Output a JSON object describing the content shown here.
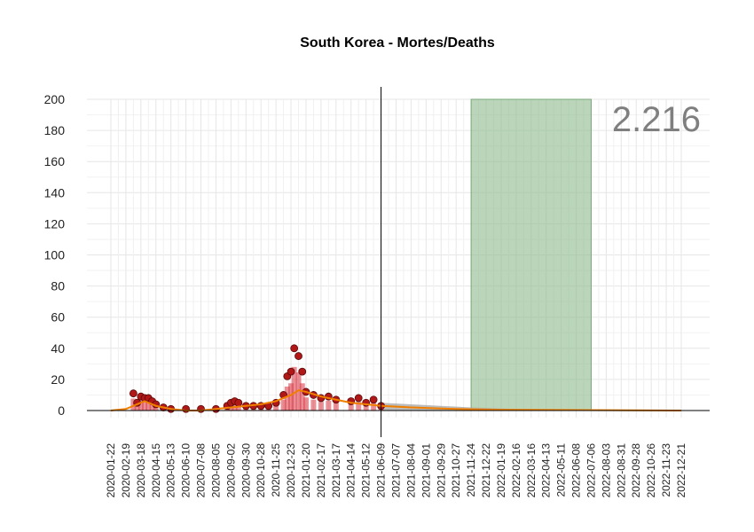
{
  "chart_data": {
    "type": "bar",
    "title": "South Korea - Mortes/Deaths",
    "total_label": "2.216",
    "ylim": [
      0,
      200
    ],
    "y_ticks": [
      0,
      20,
      40,
      60,
      80,
      100,
      120,
      140,
      160,
      180,
      200
    ],
    "x_ticks": [
      "2020-01-22",
      "2020-02-19",
      "2020-03-18",
      "2020-04-15",
      "2020-05-13",
      "2020-06-10",
      "2020-07-08",
      "2020-08-05",
      "2020-09-02",
      "2020-09-30",
      "2020-10-28",
      "2020-11-25",
      "2020-12-23",
      "2021-01-20",
      "2021-02-17",
      "2021-03-17",
      "2021-04-14",
      "2021-05-12",
      "2021-06-09",
      "2021-07-07",
      "2021-08-04",
      "2021-09-01",
      "2021-09-29",
      "2021-10-27",
      "2021-11-24",
      "2021-12-22",
      "2022-01-19",
      "2022-02-16",
      "2022-03-16",
      "2022-04-13",
      "2022-05-11",
      "2022-06-08",
      "2022-07-06",
      "2022-08-03",
      "2022-08-31",
      "2022-09-28",
      "2022-10-26",
      "2022-11-23",
      "2022-12-21"
    ],
    "x_range": [
      "2020-01-22",
      "2022-12-21"
    ],
    "grid": true,
    "forecast_start": "2021-06-09",
    "highlight_range": [
      "2021-11-24",
      "2022-07-06"
    ],
    "observed_points": [
      {
        "x": "2020-03-04",
        "y": 11
      },
      {
        "x": "2020-03-11",
        "y": 5
      },
      {
        "x": "2020-03-18",
        "y": 9
      },
      {
        "x": "2020-03-25",
        "y": 8
      },
      {
        "x": "2020-04-01",
        "y": 8
      },
      {
        "x": "2020-04-08",
        "y": 6
      },
      {
        "x": "2020-04-15",
        "y": 4
      },
      {
        "x": "2020-04-29",
        "y": 2
      },
      {
        "x": "2020-05-13",
        "y": 1
      },
      {
        "x": "2020-06-10",
        "y": 1
      },
      {
        "x": "2020-07-08",
        "y": 1
      },
      {
        "x": "2020-08-05",
        "y": 1
      },
      {
        "x": "2020-08-26",
        "y": 3
      },
      {
        "x": "2020-09-02",
        "y": 5
      },
      {
        "x": "2020-09-09",
        "y": 6
      },
      {
        "x": "2020-09-16",
        "y": 5
      },
      {
        "x": "2020-09-30",
        "y": 3
      },
      {
        "x": "2020-10-14",
        "y": 3
      },
      {
        "x": "2020-10-28",
        "y": 3
      },
      {
        "x": "2020-11-11",
        "y": 3
      },
      {
        "x": "2020-11-25",
        "y": 5
      },
      {
        "x": "2020-12-09",
        "y": 10
      },
      {
        "x": "2020-12-16",
        "y": 22
      },
      {
        "x": "2020-12-23",
        "y": 25
      },
      {
        "x": "2020-12-29",
        "y": 40
      },
      {
        "x": "2021-01-06",
        "y": 35
      },
      {
        "x": "2021-01-13",
        "y": 25
      },
      {
        "x": "2021-01-20",
        "y": 12
      },
      {
        "x": "2021-02-03",
        "y": 10
      },
      {
        "x": "2021-02-17",
        "y": 8
      },
      {
        "x": "2021-03-03",
        "y": 9
      },
      {
        "x": "2021-03-17",
        "y": 7
      },
      {
        "x": "2021-04-14",
        "y": 6
      },
      {
        "x": "2021-04-28",
        "y": 8
      },
      {
        "x": "2021-05-12",
        "y": 5
      },
      {
        "x": "2021-05-26",
        "y": 7
      },
      {
        "x": "2021-06-09",
        "y": 3
      }
    ],
    "series": [
      {
        "color": "#f07f00",
        "points": [
          {
            "x": "2020-01-22",
            "y": 0
          },
          {
            "x": "2020-02-19",
            "y": 1
          },
          {
            "x": "2020-03-11",
            "y": 4
          },
          {
            "x": "2020-03-25",
            "y": 6
          },
          {
            "x": "2020-04-15",
            "y": 3
          },
          {
            "x": "2020-05-13",
            "y": 1
          },
          {
            "x": "2020-06-10",
            "y": 0
          },
          {
            "x": "2020-07-08",
            "y": 0
          },
          {
            "x": "2020-08-05",
            "y": 1
          },
          {
            "x": "2020-09-02",
            "y": 2
          },
          {
            "x": "2020-09-30",
            "y": 3
          },
          {
            "x": "2020-10-28",
            "y": 4
          },
          {
            "x": "2020-11-25",
            "y": 6
          },
          {
            "x": "2020-12-23",
            "y": 10
          },
          {
            "x": "2021-01-06",
            "y": 13
          },
          {
            "x": "2021-01-20",
            "y": 12
          },
          {
            "x": "2021-02-17",
            "y": 9
          },
          {
            "x": "2021-03-17",
            "y": 7
          },
          {
            "x": "2021-04-14",
            "y": 5
          },
          {
            "x": "2021-05-12",
            "y": 4
          },
          {
            "x": "2021-06-09",
            "y": 3
          },
          {
            "x": "2021-08-04",
            "y": 2
          },
          {
            "x": "2021-10-27",
            "y": 1
          },
          {
            "x": "2022-01-19",
            "y": 0.5
          },
          {
            "x": "2022-12-21",
            "y": 0
          }
        ]
      }
    ],
    "colors": {
      "points": "#b01717",
      "bars": "#d9333f",
      "trend": "#f07f00",
      "forecast_band": "#a6a6a6",
      "highlight": "#8fbc8f",
      "big_number": "#7f7f7f"
    }
  }
}
